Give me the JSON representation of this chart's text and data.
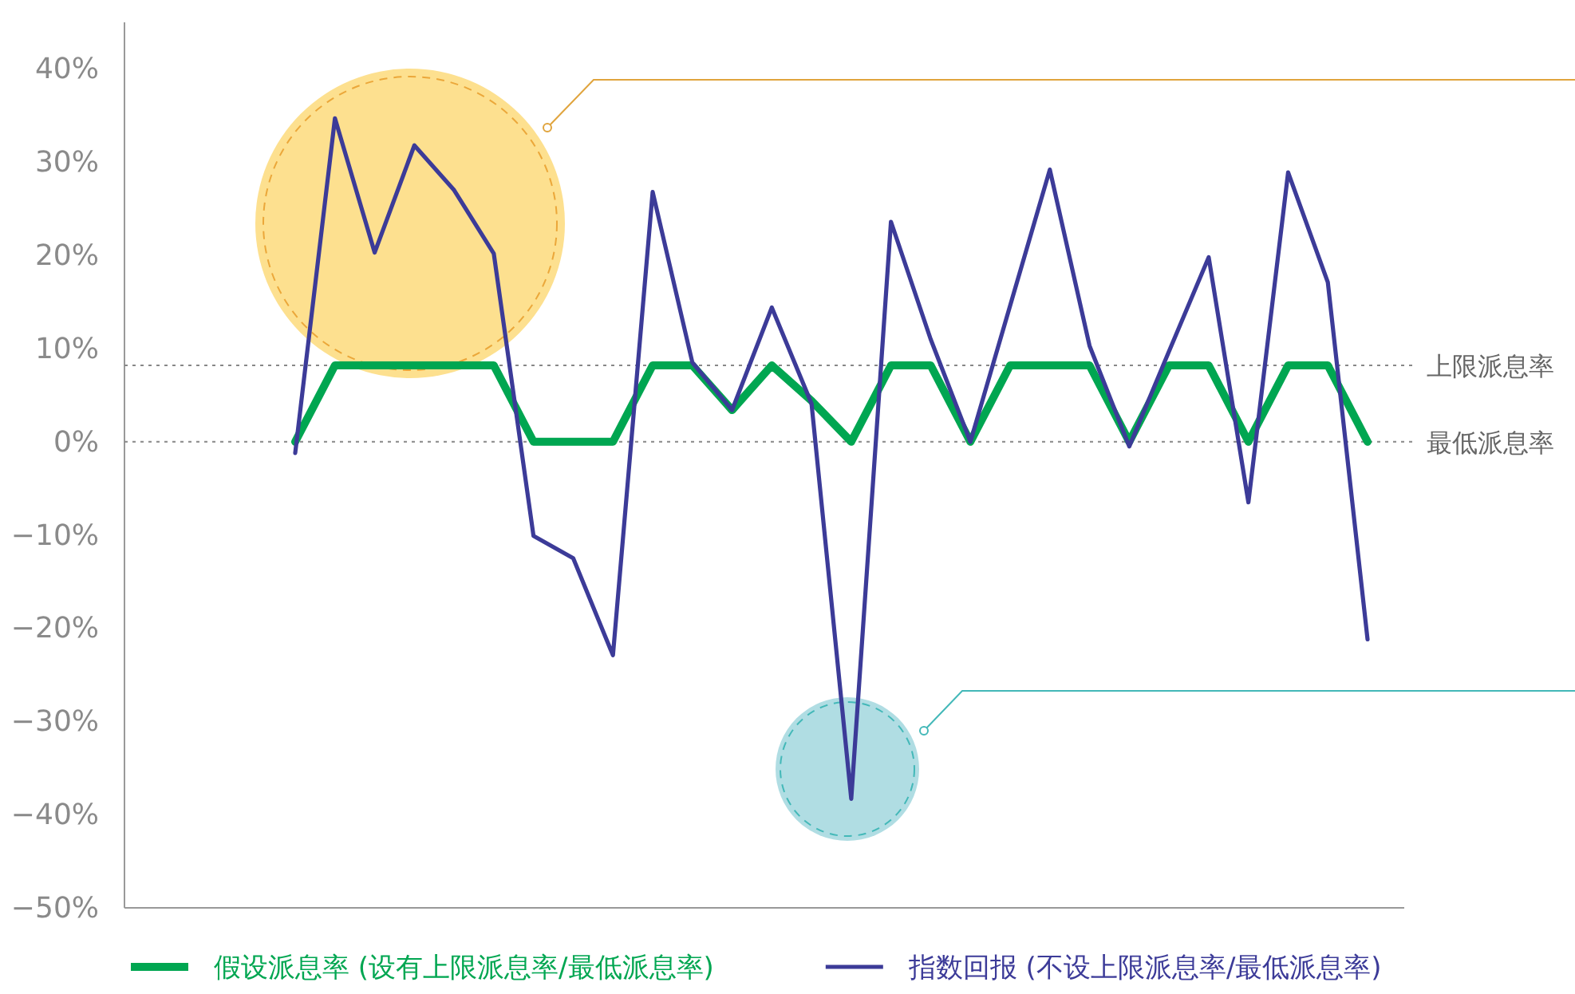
{
  "chart_data": {
    "type": "line",
    "categories": [
      null,
      null,
      null,
      null,
      null,
      null,
      null,
      null,
      null,
      null,
      null,
      null,
      null,
      null,
      null,
      null,
      null,
      null,
      null,
      null,
      null,
      null,
      null,
      null,
      null,
      null,
      null,
      null
    ],
    "series": [
      {
        "name": "假设派息率 (设有上限派息率/最低派息率)",
        "color": "#00a651",
        "values": [
          0,
          8.2,
          8.2,
          8.2,
          8.2,
          8.2,
          0,
          0,
          0,
          8.2,
          8.2,
          3.4,
          8.2,
          4.4,
          0,
          8.2,
          8.2,
          0,
          8.2,
          8.2,
          8.2,
          0,
          8.2,
          8.2,
          0,
          8.2,
          8.2,
          0
        ]
      },
      {
        "name": "指数回报 (不设上限派息率/最低派息率)",
        "color": "#3c3b98",
        "values": [
          -1.2,
          34.7,
          20.3,
          31.8,
          27,
          20.2,
          -10.1,
          -12.5,
          -22.9,
          26.8,
          8.5,
          3.4,
          14.4,
          4.1,
          -38.3,
          23.6,
          11,
          0,
          14.6,
          29.2,
          10.3,
          -0.5,
          9.7,
          19.8,
          -6.5,
          28.9,
          17.1,
          -21.2
        ]
      }
    ],
    "ylim": [
      -50,
      45
    ],
    "yticks": [
      {
        "value": 40,
        "label": "40%"
      },
      {
        "value": 30,
        "label": "30%"
      },
      {
        "value": 20,
        "label": "20%"
      },
      {
        "value": 10,
        "label": "10%"
      },
      {
        "value": 0,
        "label": "0%"
      },
      {
        "value": -10,
        "label": "−10%"
      },
      {
        "value": -20,
        "label": "−20%"
      },
      {
        "value": -30,
        "label": "−30%"
      },
      {
        "value": -40,
        "label": "−40%"
      },
      {
        "value": -50,
        "label": "−50%"
      }
    ],
    "ref_lines": [
      {
        "axis": "y",
        "value": 8.2,
        "label": "上限派息率",
        "color": "#888888",
        "line_style": "dotted"
      },
      {
        "axis": "y",
        "value": 0,
        "label": "最低派息率",
        "color": "#888888",
        "line_style": "dotted"
      }
    ],
    "grid": false,
    "legend": "bottom",
    "marker": "none",
    "line_style": "solid"
  }
}
